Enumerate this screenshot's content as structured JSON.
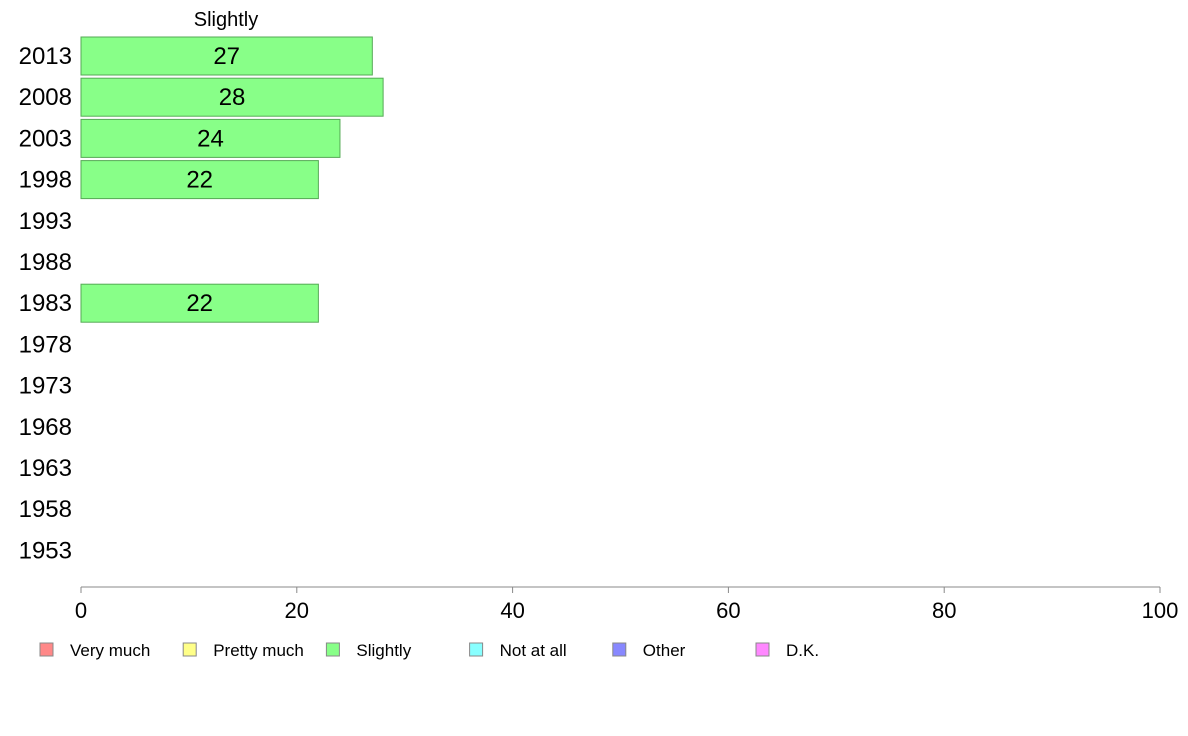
{
  "chart_data": {
    "type": "bar",
    "orientation": "horizontal",
    "title": "Slightly",
    "categories": [
      "2013",
      "2008",
      "2003",
      "1998",
      "1993",
      "1988",
      "1983",
      "1978",
      "1973",
      "1968",
      "1963",
      "1958",
      "1953"
    ],
    "series": [
      {
        "name": "Slightly",
        "color": "#88ff88",
        "values": [
          27,
          28,
          24,
          22,
          null,
          null,
          22,
          null,
          null,
          null,
          null,
          null,
          null
        ]
      }
    ],
    "xlim": [
      0,
      100
    ],
    "xticks": [
      "0",
      "20",
      "40",
      "60",
      "80",
      "100"
    ],
    "xlabel": "",
    "ylabel": "",
    "grid": false,
    "legend_position": "bottom",
    "legend": [
      {
        "label": "Very much",
        "color": "#ff8888"
      },
      {
        "label": "Pretty much",
        "color": "#ffff88"
      },
      {
        "label": "Slightly",
        "color": "#88ff88"
      },
      {
        "label": "Not at all",
        "color": "#88ffff"
      },
      {
        "label": "Other",
        "color": "#8888ff"
      },
      {
        "label": "D.K.",
        "color": "#ff88ff"
      }
    ]
  }
}
